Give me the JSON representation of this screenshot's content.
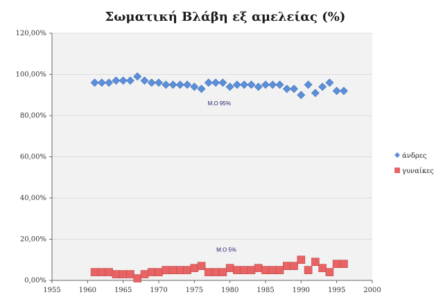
{
  "chart_data": {
    "type": "scatter",
    "title": "Σωματική Βλάβη εξ αμελείας (%)",
    "xlim": [
      1955,
      2000
    ],
    "ylim": [
      0,
      120
    ],
    "x_ticks": [
      "1955",
      "1960",
      "1965",
      "1970",
      "1975",
      "1980",
      "1985",
      "1990",
      "1995",
      "2000"
    ],
    "y_ticks": [
      "0,00%",
      "20,00%",
      "40,00%",
      "60,00%",
      "80,00%",
      "100,00%",
      "120,00%"
    ],
    "plot_background": "#f2f2f2",
    "legend_position": "right",
    "annotations": [
      {
        "text": "Μ.Ο 95%",
        "x": 1978.5,
        "y": 85
      },
      {
        "text": "Μ.Ο 5%",
        "x": 1979.5,
        "y": 14
      }
    ],
    "series": [
      {
        "name": "άνδρες",
        "marker": "diamond",
        "color": "#5b8fd8",
        "x": [
          1961,
          1962,
          1963,
          1964,
          1965,
          1966,
          1967,
          1968,
          1969,
          1970,
          1971,
          1972,
          1973,
          1974,
          1975,
          1976,
          1977,
          1978,
          1979,
          1980,
          1981,
          1982,
          1983,
          1984,
          1985,
          1986,
          1987,
          1988,
          1989,
          1990,
          1991,
          1992,
          1993,
          1994,
          1995,
          1996
        ],
        "values": [
          96,
          96,
          96,
          97,
          97,
          97,
          99,
          97,
          96,
          96,
          95,
          95,
          95,
          95,
          94,
          93,
          96,
          96,
          96,
          94,
          95,
          95,
          95,
          94,
          95,
          95,
          95,
          93,
          93,
          90,
          95,
          91,
          94,
          96,
          92,
          92
        ]
      },
      {
        "name": "γυναίκες",
        "marker": "square",
        "color": "#e86464",
        "x": [
          1961,
          1962,
          1963,
          1964,
          1965,
          1966,
          1967,
          1968,
          1969,
          1970,
          1971,
          1972,
          1973,
          1974,
          1975,
          1976,
          1977,
          1978,
          1979,
          1980,
          1981,
          1982,
          1983,
          1984,
          1985,
          1986,
          1987,
          1988,
          1989,
          1990,
          1991,
          1992,
          1993,
          1994,
          1995,
          1996
        ],
        "values": [
          4,
          4,
          4,
          3,
          3,
          3,
          1,
          3,
          4,
          4,
          5,
          5,
          5,
          5,
          6,
          7,
          4,
          4,
          4,
          6,
          5,
          5,
          5,
          6,
          5,
          5,
          5,
          7,
          7,
          10,
          5,
          9,
          6,
          4,
          8,
          8
        ]
      }
    ]
  }
}
